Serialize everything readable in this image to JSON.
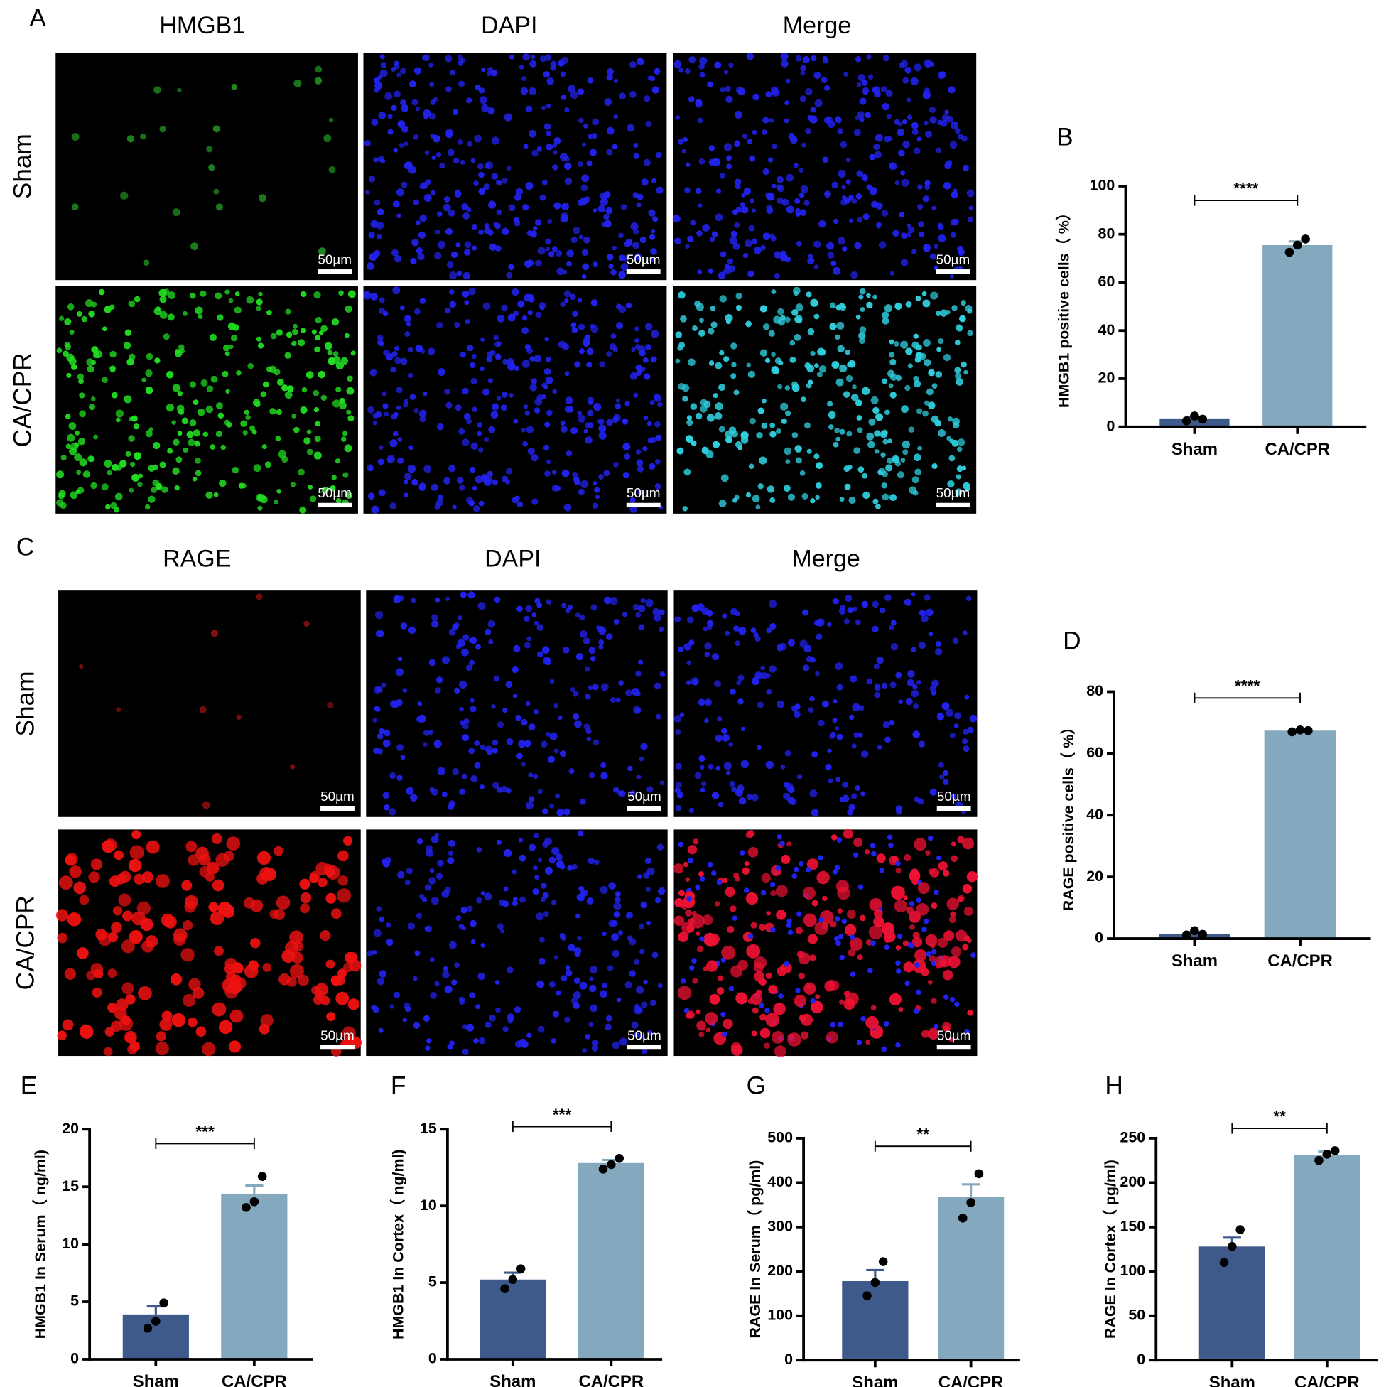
{
  "figure_panels": [
    {
      "letter": "A",
      "columns": [
        "HMGB1",
        "DAPI",
        "Merge"
      ],
      "rows": [
        "Sham",
        "CA/CPR"
      ],
      "scale_bar": "50µm"
    },
    {
      "letter": "C",
      "columns": [
        "RAGE",
        "DAPI",
        "Merge"
      ],
      "rows": [
        "Sham",
        "CA/CPR"
      ],
      "scale_bar": "50µm"
    }
  ],
  "chart_data": [
    {
      "type": "bar",
      "letter": "B",
      "y_label": "HMGB1 positive cells（ %）",
      "categories": [
        "Sham",
        "CA/CPR"
      ],
      "colors": [
        "#3d5a8a",
        "#84a9bf"
      ],
      "values": [
        3.5,
        75.5
      ],
      "errors": [
        0.6,
        1.5
      ],
      "points": [
        [
          2.5,
          4.5,
          3.2
        ],
        [
          72.5,
          75.5,
          78
        ]
      ],
      "significance": "****",
      "ylim": [
        0,
        100
      ],
      "yticks": [
        0,
        20,
        40,
        60,
        80,
        100
      ]
    },
    {
      "type": "bar",
      "letter": "D",
      "y_label": "RAGE positive cells（ %）",
      "categories": [
        "Sham",
        "CA/CPR"
      ],
      "colors": [
        "#3d5a8a",
        "#84a9bf"
      ],
      "values": [
        1.6,
        67.4
      ],
      "errors": [
        0.5,
        0.3
      ],
      "points": [
        [
          1.2,
          2.6,
          1.4
        ],
        [
          67,
          67.6,
          67.4
        ]
      ],
      "significance": "****",
      "ylim": [
        0,
        80
      ],
      "yticks": [
        0,
        20,
        40,
        60,
        80
      ]
    },
    {
      "type": "bar",
      "letter": "E",
      "y_label": "HMGB1 In Serum（ ng/ml)",
      "categories": [
        "Sham",
        "CA/CPR"
      ],
      "colors": [
        "#3d5a8a",
        "#84a9bf"
      ],
      "values": [
        3.9,
        14.4
      ],
      "errors": [
        0.7,
        0.7
      ],
      "points": [
        [
          2.7,
          3.3,
          4.9
        ],
        [
          13.2,
          13.7,
          15.9
        ]
      ],
      "significance": "***",
      "ylim": [
        0,
        20
      ],
      "yticks": [
        0,
        5,
        10,
        15,
        20
      ]
    },
    {
      "type": "bar",
      "letter": "F",
      "y_label": "HMGB1 In Cortex（ ng/ml)",
      "categories": [
        "Sham",
        "CA/CPR"
      ],
      "colors": [
        "#3d5a8a",
        "#84a9bf"
      ],
      "values": [
        5.2,
        12.8
      ],
      "errors": [
        0.45,
        0.2
      ],
      "points": [
        [
          4.6,
          5.2,
          5.9
        ],
        [
          12.4,
          12.7,
          13.1
        ]
      ],
      "significance": "***",
      "ylim": [
        0,
        15
      ],
      "yticks": [
        0,
        5,
        10,
        15
      ]
    },
    {
      "type": "bar",
      "letter": "G",
      "y_label": "RAGE In Serum（ pg/ml)",
      "categories": [
        "Sham",
        "CA/CPR"
      ],
      "colors": [
        "#3d5a8a",
        "#84a9bf"
      ],
      "values": [
        178,
        368
      ],
      "errors": [
        25,
        28
      ],
      "points": [
        [
          145,
          175,
          222
        ],
        [
          320,
          355,
          420
        ]
      ],
      "significance": "**",
      "ylim": [
        0,
        500
      ],
      "yticks": [
        0,
        100,
        200,
        300,
        400,
        500
      ]
    },
    {
      "type": "bar",
      "letter": "H",
      "y_label": "RAGE In Cortex（ pg/ml)",
      "categories": [
        "Sham",
        "CA/CPR"
      ],
      "colors": [
        "#3d5a8a",
        "#84a9bf"
      ],
      "values": [
        128,
        231
      ],
      "errors": [
        10,
        4
      ],
      "points": [
        [
          110,
          128,
          147
        ],
        [
          225,
          232,
          236
        ]
      ],
      "significance": "**",
      "ylim": [
        0,
        250
      ],
      "yticks": [
        0,
        50,
        100,
        150,
        200,
        250
      ]
    }
  ]
}
